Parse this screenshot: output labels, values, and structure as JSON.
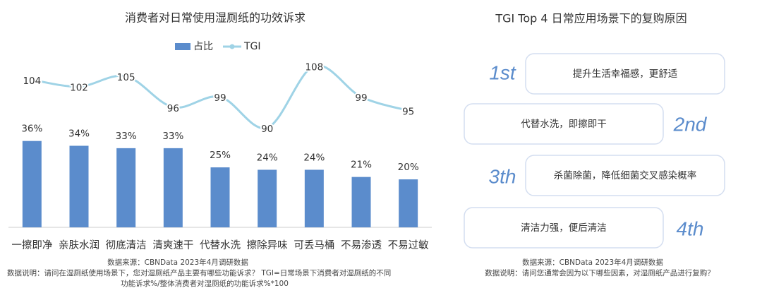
{
  "chart_data": {
    "type": "bar",
    "title": "消费者对日常使用湿厕纸的功效诉求",
    "categories": [
      "一擦即净",
      "亲肤水润",
      "彻底清洁",
      "清爽速干",
      "代替水洗",
      "擦除异味",
      "可丢马桶",
      "不易渗透",
      "不易过敏"
    ],
    "series": [
      {
        "name": "占比",
        "type": "bar",
        "color": "#5b8ccc",
        "values": [
          36,
          34,
          33,
          33,
          25,
          24,
          24,
          21,
          20
        ],
        "value_labels": [
          "36%",
          "34%",
          "33%",
          "33%",
          "25%",
          "24%",
          "24%",
          "21%",
          "20%"
        ]
      },
      {
        "name": "TGI",
        "type": "line",
        "axis": "y2",
        "color": "#9fd3e6",
        "values": [
          104,
          102,
          105,
          96,
          99,
          90,
          108,
          99,
          95
        ]
      }
    ],
    "ylim": [
      0,
      83
    ],
    "y2lim": [
      61,
      119
    ],
    "legend": "top"
  },
  "left_notes": {
    "source": "数据来源：CBNData 2023年4月调研数据",
    "lines": [
      "数据说明：请问在湿厕纸使用场景下，您对湿厕纸产品主要有哪些功能诉求？ TGI=日常场景下消费者对湿厕纸的不同",
      "功能诉求%/整体消费者对湿厕纸的功能诉求%*100"
    ]
  },
  "right_panel": {
    "title": "TGI Top 4 日常应用场景下的复购原因",
    "items": [
      {
        "rank": "1st",
        "text": "提升生活幸福感，更舒适"
      },
      {
        "rank": "2nd",
        "text": "代替水洗，即擦即干"
      },
      {
        "rank": "3th",
        "text": "杀菌除菌，降低细菌交叉感染概率"
      },
      {
        "rank": "4th",
        "text": "清洁力强，便后清洁"
      }
    ],
    "source": "数据来源：CBNData 2023年4月调研数据",
    "note": "数据说明：请问您通常会因为以下哪些因素，对湿厕纸产品进行复购？"
  }
}
